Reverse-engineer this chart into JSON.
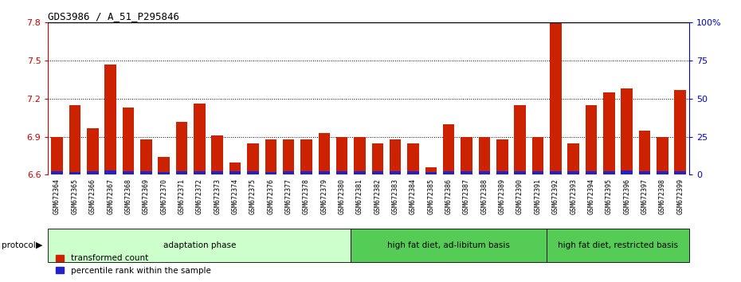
{
  "title": "GDS3986 / A_51_P295846",
  "samples": [
    "GSM672364",
    "GSM672365",
    "GSM672366",
    "GSM672367",
    "GSM672368",
    "GSM672369",
    "GSM672370",
    "GSM672371",
    "GSM672372",
    "GSM672373",
    "GSM672374",
    "GSM672375",
    "GSM672376",
    "GSM672377",
    "GSM672378",
    "GSM672379",
    "GSM672380",
    "GSM672381",
    "GSM672382",
    "GSM672383",
    "GSM672384",
    "GSM672385",
    "GSM672386",
    "GSM672387",
    "GSM672388",
    "GSM672389",
    "GSM672390",
    "GSM672391",
    "GSM672392",
    "GSM672393",
    "GSM672394",
    "GSM672395",
    "GSM672396",
    "GSM672397",
    "GSM672398",
    "GSM672399"
  ],
  "red_values": [
    6.9,
    7.15,
    6.97,
    7.47,
    7.13,
    6.88,
    6.74,
    7.02,
    7.16,
    6.91,
    6.7,
    6.85,
    6.88,
    6.88,
    6.88,
    6.93,
    6.9,
    6.9,
    6.85,
    6.88,
    6.85,
    6.66,
    7.0,
    6.9,
    6.9,
    6.88,
    7.15,
    6.9,
    7.82,
    6.85,
    7.15,
    7.25,
    7.28,
    6.95,
    6.9,
    7.27
  ],
  "blue_heights": [
    0.022,
    0.018,
    0.025,
    0.028,
    0.022,
    0.02,
    0.015,
    0.022,
    0.02,
    0.02,
    0.02,
    0.02,
    0.018,
    0.02,
    0.02,
    0.022,
    0.02,
    0.02,
    0.02,
    0.022,
    0.02,
    0.018,
    0.022,
    0.022,
    0.022,
    0.02,
    0.022,
    0.02,
    0.02,
    0.02,
    0.022,
    0.025,
    0.028,
    0.022,
    0.022,
    0.025
  ],
  "groups": [
    {
      "label": "adaptation phase",
      "start": 0,
      "end": 16,
      "color": "#ccffcc"
    },
    {
      "label": "high fat diet, ad-libitum basis",
      "start": 17,
      "end": 27,
      "color": "#55cc55"
    },
    {
      "label": "high fat diet, restricted basis",
      "start": 28,
      "end": 35,
      "color": "#55cc55"
    }
  ],
  "ylim_left": [
    6.6,
    7.8
  ],
  "ylim_right": [
    0,
    100
  ],
  "yticks_left": [
    6.6,
    6.9,
    7.2,
    7.5,
    7.8
  ],
  "yticks_right": [
    0,
    25,
    50,
    75,
    100
  ],
  "left_color": "#cc0000",
  "right_color": "#0000cc",
  "bar_color_red": "#cc2200",
  "bar_color_blue": "#2222cc",
  "background_color": "#ffffff",
  "legend_items": [
    "transformed count",
    "percentile rank within the sample"
  ]
}
